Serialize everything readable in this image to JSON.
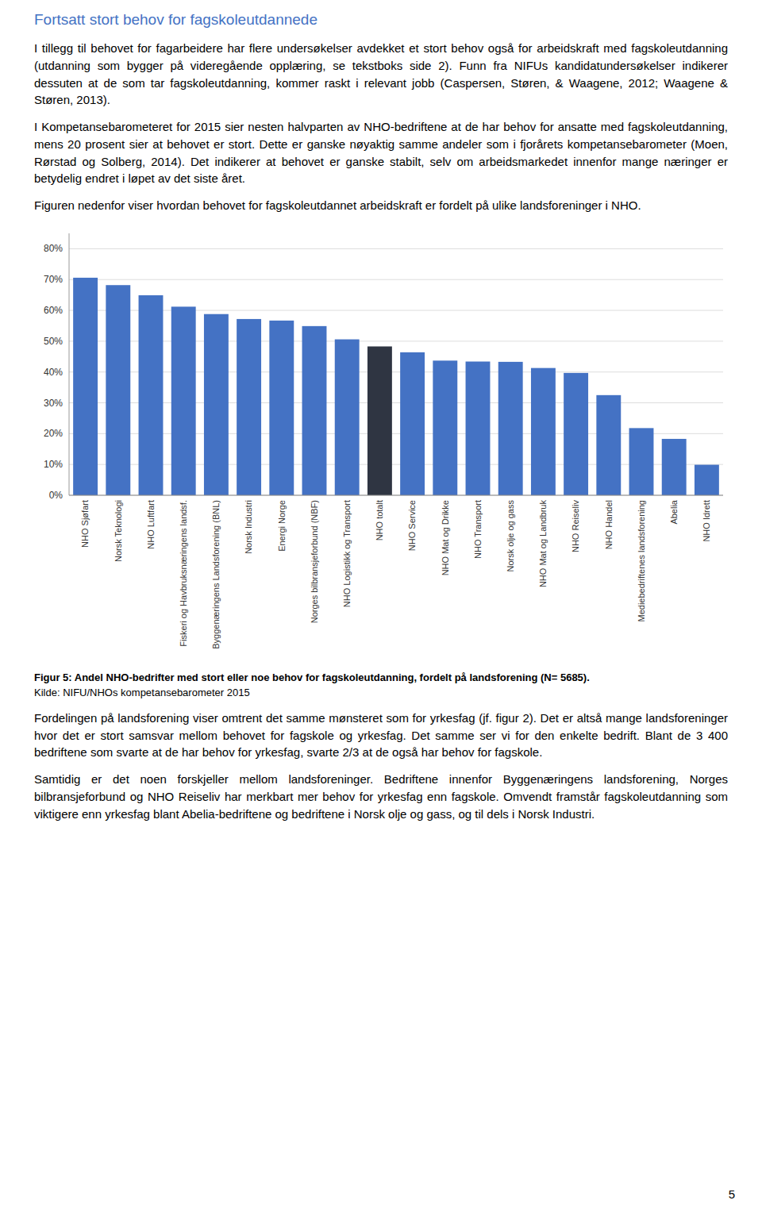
{
  "heading": "Fortsatt stort behov for fagskoleutdannede",
  "body_text": [
    "I tillegg til behovet for fagarbeidere har flere undersøkelser avdekket et stort behov også for arbeidskraft med fagskoleutdanning (utdanning som bygger på videregående opplæring, se tekstboks side 2). Funn fra NIFUs kandidatundersøkelser indikerer dessuten at de som tar fagskoleutdanning, kommer raskt i relevant jobb (Caspersen, Støren, & Waagene, 2012; Waagene & Støren, 2013).",
    "I Kompetansebarometeret for 2015 sier nesten halvparten av NHO-bedriftene at de har behov for ansatte med fagskoleutdanning, mens 20 prosent sier at behovet er stort. Dette er ganske nøyaktig samme andeler som i fjorårets kompetansebarometer (Moen, Rørstad og Solberg, 2014). Det indikerer at behovet er ganske stabilt, selv om arbeidsmarkedet innenfor mange næringer er betydelig endret i løpet av det siste året.",
    "Figuren nedenfor viser hvordan behovet for fagskoleutdannet arbeidskraft er fordelt på ulike landsforeninger i NHO."
  ],
  "chart_data": {
    "type": "bar",
    "categories": [
      "NHO Sjøfart",
      "Norsk Teknologi",
      "NHO Luftfart",
      "Fiskeri og Havbruksnæringens landsf.",
      "Byggenæringens Landsforening (BNL)",
      "Norsk Industri",
      "Energi Norge",
      "Norges bilbransjeforbund (NBF)",
      "NHO Logistikk og Transport",
      "NHO totalt",
      "NHO Service",
      "NHO Mat og Drikke",
      "NHO Transport",
      "Norsk olje og gass",
      "NHO Mat og Landbruk",
      "NHO Reiseliv",
      "NHO Handel",
      "Mediebedriftenes landsforening",
      "Abelia",
      "NHO Idrett"
    ],
    "values": [
      0.706,
      0.682,
      0.649,
      0.612,
      0.588,
      0.572,
      0.567,
      0.549,
      0.506,
      0.483,
      0.464,
      0.437,
      0.434,
      0.433,
      0.413,
      0.397,
      0.325,
      0.218,
      0.183,
      0.099
    ],
    "colors": [
      "#4472C4",
      "#4472C4",
      "#4472C4",
      "#4472C4",
      "#4472C4",
      "#4472C4",
      "#4472C4",
      "#4472C4",
      "#4472C4",
      "#2F3542",
      "#4472C4",
      "#4472C4",
      "#4472C4",
      "#4472C4",
      "#4472C4",
      "#4472C4",
      "#4472C4",
      "#4472C4",
      "#4472C4",
      "#4472C4"
    ],
    "ylim": [
      0,
      0.85
    ],
    "yticks": [
      {
        "value": 0.0,
        "label": "0%"
      },
      {
        "value": 0.1,
        "label": "10%"
      },
      {
        "value": 0.2,
        "label": "20%"
      },
      {
        "value": 0.3,
        "label": "30%"
      },
      {
        "value": 0.4,
        "label": "40%"
      },
      {
        "value": 0.5,
        "label": "50%"
      },
      {
        "value": 0.6,
        "label": "60%"
      },
      {
        "value": 0.7,
        "label": "70%"
      },
      {
        "value": 0.8,
        "label": "80%"
      }
    ],
    "grid": true
  },
  "caption": "Figur 5: Andel NHO-bedrifter med stort eller noe behov for fagskoleutdanning, fordelt på landsforening (N= 5685).",
  "source": "Kilde: NIFU/NHOs kompetansebarometer 2015",
  "post_text": [
    "Fordelingen på landsforening viser omtrent det samme mønsteret som for yrkesfag (jf. figur 2). Det er altså mange landsforeninger hvor det er stort samsvar mellom behovet for fagskole og yrkesfag. Det samme ser vi for den enkelte bedrift.  Blant de 3 400 bedriftene som svarte at de har behov for yrkesfag, svarte 2/3 at de også har behov for fagskole.",
    "Samtidig er det noen forskjeller mellom landsforeninger. Bedriftene innenfor Byggenæringens landsforening, Norges bilbransjeforbund og NHO Reiseliv har merkbart mer behov for yrkesfag enn fagskole. Omvendt framstår fagskoleutdanning som viktigere enn yrkesfag blant Abelia-bedriftene og bedriftene i Norsk olje og gass, og til dels i Norsk Industri."
  ],
  "page_number": "5"
}
